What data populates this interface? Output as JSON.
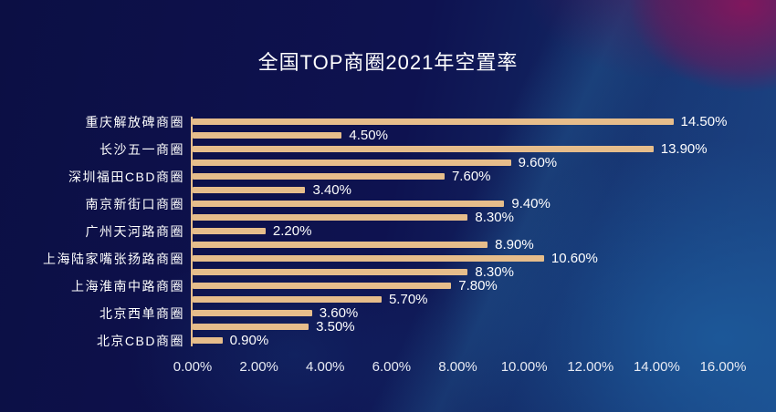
{
  "page": {
    "title": "全国TOP商圈2021年空置率"
  },
  "chart_data": {
    "type": "bar",
    "orientation": "horizontal",
    "title": "全国TOP商圈2021年空置率",
    "xlabel": "",
    "ylabel": "",
    "xlim": [
      0,
      16
    ],
    "x_ticks": [
      "0.00%",
      "2.00%",
      "4.00%",
      "6.00%",
      "8.00%",
      "10.00%",
      "12.00%",
      "14.00%",
      "16.00%"
    ],
    "grid": false,
    "legend": false,
    "bar_color": "#e6bd8b",
    "axis_line_color": "#e6bd8b",
    "value_label_color": "#ffffff",
    "category_label_color": "#ffffff",
    "tick_label_color": "#e8ebf4",
    "background_base_color": "#0e1250",
    "groups": [
      {
        "category": "重庆解放碑商圈",
        "values": [
          14.5,
          4.5
        ]
      },
      {
        "category": "长沙五一商圈",
        "values": [
          13.9,
          9.6
        ]
      },
      {
        "category": "深圳福田CBD商圈",
        "values": [
          7.6,
          3.4
        ]
      },
      {
        "category": "南京新街口商圈",
        "values": [
          9.4,
          8.3
        ]
      },
      {
        "category": "广州天河路商圈",
        "values": [
          2.2,
          8.9
        ]
      },
      {
        "category": "上海陆家嘴张扬路商圈",
        "values": [
          10.6,
          8.3
        ]
      },
      {
        "category": "上海淮南中路商圈",
        "values": [
          7.8,
          5.7
        ]
      },
      {
        "category": "北京西单商圈",
        "values": [
          3.6,
          3.5
        ]
      },
      {
        "category": "北京CBD商圈",
        "values": [
          0.9
        ]
      }
    ],
    "data_labels": [
      "14.50%",
      "4.50%",
      "13.90%",
      "9.60%",
      "7.60%",
      "3.40%",
      "9.40%",
      "8.30%",
      "2.20%",
      "8.90%",
      "10.60%",
      "8.30%",
      "7.80%",
      "5.70%",
      "3.60%",
      "3.50%",
      "0.90%"
    ]
  }
}
